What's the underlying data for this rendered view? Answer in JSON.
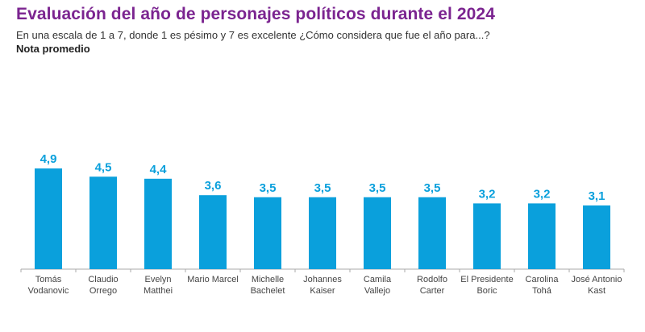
{
  "header": {
    "title": "Evaluación del año de personajes políticos durante el 2024",
    "subtitle": "En una escala de 1 a 7, donde 1 es pésimo y 7 es excelente ¿Cómo considera que fue el año para...?",
    "note": "Nota promedio"
  },
  "colors": {
    "title": "#7b2490",
    "bar": "#0aa0dc",
    "value_label": "#0aa0dc",
    "axis": "#aaaaaa"
  },
  "chart_data": {
    "type": "bar",
    "title": "Evaluación del año de personajes políticos durante el 2024",
    "subtitle": "En una escala de 1 a 7, donde 1 es pésimo y 7 es excelente ¿Cómo considera que fue el año para...?",
    "ylabel": "Nota promedio",
    "xlabel": "",
    "categories": [
      [
        "Tomás",
        "Vodanovic"
      ],
      [
        "Claudio",
        "Orrego"
      ],
      [
        "Evelyn",
        "Matthei"
      ],
      [
        "Mario Marcel"
      ],
      [
        "Michelle",
        "Bachelet"
      ],
      [
        "Johannes",
        "Kaiser"
      ],
      [
        "Camila",
        "Vallejo"
      ],
      [
        "Rodolfo",
        "Carter"
      ],
      [
        "El Presidente",
        "Boric"
      ],
      [
        "Carolina",
        "Tohá"
      ],
      [
        "José Antonio",
        "Kast"
      ]
    ],
    "values": [
      4.9,
      4.5,
      4.4,
      3.6,
      3.5,
      3.5,
      3.5,
      3.5,
      3.2,
      3.2,
      3.1
    ],
    "value_labels": [
      "4,9",
      "4,5",
      "4,4",
      "3,6",
      "3,5",
      "3,5",
      "3,5",
      "3,5",
      "3,2",
      "3,2",
      "3,1"
    ],
    "ylim": [
      0,
      4.9
    ],
    "grid": false,
    "legend": "none"
  }
}
